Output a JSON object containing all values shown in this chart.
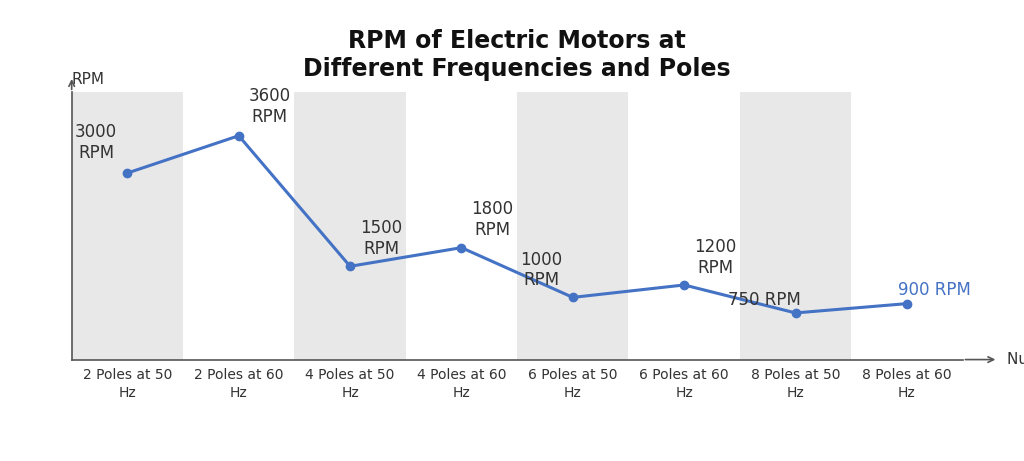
{
  "title": "RPM of Electric Motors at\nDifferent Frequencies and Poles",
  "xlabel": "Number of Poles",
  "ylabel": "RPM",
  "categories": [
    "2 Poles at 50\nHz",
    "2 Poles at 60\nHz",
    "4 Poles at 50\nHz",
    "4 Poles at 60\nHz",
    "6 Poles at 50\nHz",
    "6 Poles at 60\nHz",
    "8 Poles at 50\nHz",
    "8 Poles at 60\nHz"
  ],
  "values": [
    3000,
    3600,
    1500,
    1800,
    1000,
    1200,
    750,
    900
  ],
  "labels": [
    "3000\nRPM",
    "3600\nRPM",
    "1500\nRPM",
    "1800\nRPM",
    "1000\nRPM",
    "1200\nRPM",
    "750 RPM",
    "900 RPM"
  ],
  "label_colors": [
    "#333333",
    "#333333",
    "#333333",
    "#333333",
    "#333333",
    "#333333",
    "#333333",
    "#4472C4"
  ],
  "label_offsets_x": [
    -0.28,
    0.28,
    0.28,
    0.28,
    -0.28,
    0.28,
    -0.28,
    0.25
  ],
  "label_offsets_y": [
    180,
    160,
    140,
    140,
    130,
    130,
    70,
    70
  ],
  "line_color": "#4472C4",
  "marker_color": "#4472C4",
  "bg_color": "#ffffff",
  "band_color": "#e8e8e8",
  "title_fontsize": 17,
  "label_fontsize": 12,
  "axis_label_fontsize": 11,
  "tick_fontsize": 10,
  "ylim": [
    0,
    4300
  ],
  "band_indices": [
    0,
    2,
    4,
    6
  ]
}
